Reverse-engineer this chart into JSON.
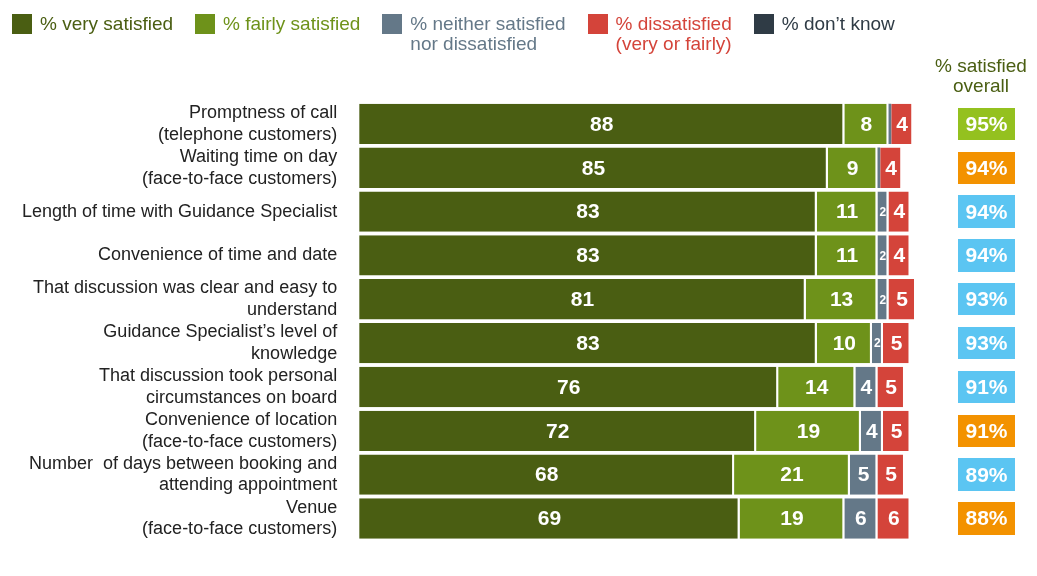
{
  "chart_data": [
    {
      "type": "bar",
      "orientation": "horizontal",
      "stacked": true,
      "legend": "top",
      "categories": [
        "Promptness of call\n(telephone customers)",
        "Waiting time on day\n(face-to-face customers)",
        "Length of time with Guidance Specialist",
        "Convenience of time and date",
        "That discussion was clear and easy to\nunderstand",
        "Guidance Specialist’s level of\nknowledge",
        "That discussion took personal\ncircumstances on board",
        "Convenience of location\n(face-to-face customers)",
        "Number  of days between booking and\nattending appointment",
        "Venue\n(face-to-face customers)"
      ],
      "series": [
        {
          "name": "% very satisfied",
          "color": "#4a5e12",
          "values": [
            88,
            85,
            83,
            83,
            81,
            83,
            76,
            72,
            68,
            69
          ],
          "value_labels": [
            "88",
            "85",
            "83",
            "83",
            "81",
            "83",
            "76",
            "72",
            "68",
            "69"
          ]
        },
        {
          "name": "% fairly satisfied",
          "color": "#6e921a",
          "values": [
            8,
            9,
            11,
            11,
            13,
            10,
            14,
            19,
            21,
            19
          ],
          "value_labels": [
            "8",
            "9",
            "11",
            "11",
            "13",
            "10",
            "14",
            "19",
            "21",
            "19"
          ]
        },
        {
          "name": "% neither satisfied\nnor dissatisfied",
          "color": "#647888",
          "values": [
            0.5,
            0.5,
            2,
            2,
            2,
            2,
            4,
            4,
            5,
            6
          ],
          "value_labels": [
            null,
            null,
            "2",
            "2",
            "2",
            "2",
            "4",
            "4",
            "5",
            "6"
          ]
        },
        {
          "name": "% dissatisfied\n(very or fairly)",
          "color": "#d4443a",
          "values": [
            4,
            4,
            4,
            4,
            5,
            5,
            5,
            5,
            5,
            6
          ],
          "value_labels": [
            "4",
            "4",
            "4",
            "4",
            "5",
            "5",
            "5",
            "5",
            "5",
            "6"
          ]
        },
        {
          "name": "% don’t know",
          "color": "#2f3b45",
          "values": [
            null,
            null,
            null,
            null,
            null,
            null,
            null,
            null,
            null,
            null
          ]
        }
      ]
    },
    {
      "type": "other",
      "title": "% satisfied overall",
      "categories": [
        null,
        null,
        null,
        null,
        null,
        null,
        null,
        null,
        null,
        null
      ],
      "values": [
        95,
        94,
        94,
        94,
        93,
        93,
        91,
        91,
        89,
        88
      ],
      "value_labels": [
        "95%",
        "94%",
        "94%",
        "94%",
        "93%",
        "93%",
        "91%",
        "91%",
        "89%",
        "88%"
      ],
      "colors": [
        "#94c11f",
        "#f39200",
        "#5bc5f2",
        "#5bc5f2",
        "#5bc5f2",
        "#5bc5f2",
        "#5bc5f2",
        "#f39200",
        "#5bc5f2",
        "#f39200"
      ]
    }
  ]
}
